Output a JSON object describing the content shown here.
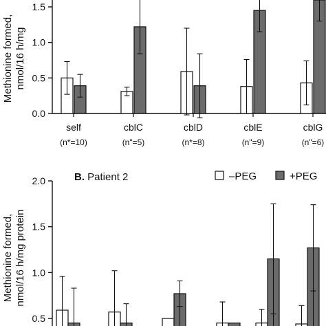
{
  "chart_data": [
    {
      "type": "bar",
      "panel": "A",
      "title": "",
      "ylabel_lines": [
        "Methionine formed,",
        "nmol/16 h/mg"
      ],
      "ylim": [
        0,
        1.5
      ],
      "yticks": [
        "0.0",
        "0.5",
        "1.0",
        "1.5"
      ],
      "ytick_values": [
        0,
        0.5,
        1.0,
        1.5
      ],
      "categories": [
        "self",
        "cblC",
        "cblD",
        "cblE",
        "cblG"
      ],
      "n_labels": [
        "(n*=10)",
        "(n\"=5)",
        "(n*=8)",
        "(n\"=9)",
        "(n\"=6)"
      ],
      "series": [
        {
          "name": "–PEG",
          "color": "#ffffff",
          "values": [
            0.5,
            0.31,
            0.59,
            0.38,
            0.43
          ],
          "errors": [
            0.23,
            0.06,
            0.61,
            0.38,
            0.31
          ]
        },
        {
          "name": "+PEG",
          "color": "#6b6b6b",
          "values": [
            0.39,
            1.22,
            0.39,
            1.45,
            1.6
          ],
          "errors": [
            0.16,
            0.38,
            0.45,
            0.3,
            0.3
          ]
        }
      ]
    },
    {
      "type": "bar",
      "panel": "B",
      "title_bold": "B.",
      "title_rest": " Patient 2",
      "ylabel_lines": [
        "Methionine formed,",
        "nmol/16 h/mg protein"
      ],
      "ylim": [
        0.5,
        2.0
      ],
      "yticks": [
        "0.5",
        "1.0",
        "1.5",
        "2.0"
      ],
      "ytick_values": [
        0.5,
        1.0,
        1.5,
        2.0
      ],
      "series": [
        {
          "name": "–PEG",
          "color": "#ffffff",
          "values": [
            0.59,
            0.57,
            0.5,
            0.45,
            0.45,
            0.44
          ],
          "errors": [
            0.37,
            0.45,
            0.0,
            0.23,
            0.15,
            0.2
          ]
        },
        {
          "name": "+PEG",
          "color": "#6b6b6b",
          "values": [
            0.45,
            0.45,
            0.77,
            0.45,
            1.15,
            1.27
          ],
          "errors": [
            0.38,
            0.21,
            0.14,
            0.0,
            0.6,
            0.47
          ]
        }
      ],
      "legend": [
        {
          "label": "–PEG",
          "color": "#ffffff"
        },
        {
          "label": "+PEG",
          "color": "#6b6b6b"
        }
      ]
    }
  ]
}
